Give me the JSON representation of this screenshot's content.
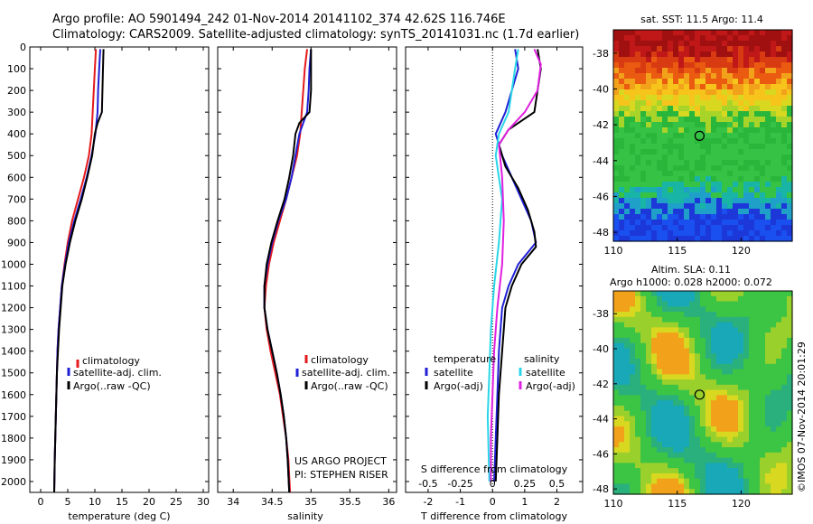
{
  "header": {
    "line1": "Argo profile: AO 5901494_242 01-Nov-2014 20141102_374 42.62S 116.746E",
    "line2": "Climatology: CARS2009. Satellite-adjusted climatology: synTS_20141031.nc (1.7d earlier)"
  },
  "colors": {
    "climatology": "#e41a1c",
    "satellite": "#1f1fd6",
    "argo": "#000000",
    "sal_satellite": "#2ad6e8",
    "sal_argo": "#e021e0"
  },
  "chart_data": [
    {
      "type": "line",
      "name": "temperature-profile",
      "xlabel": "temperature (deg C)",
      "ylabel": "",
      "xlim": [
        -2,
        31
      ],
      "ylim": [
        2050,
        0
      ],
      "xticks": [
        0,
        5,
        10,
        15,
        20,
        25,
        30
      ],
      "yticks": [
        0,
        100,
        200,
        300,
        400,
        500,
        600,
        700,
        800,
        900,
        1000,
        1100,
        1200,
        1300,
        1400,
        1500,
        1600,
        1700,
        1800,
        1900,
        2000
      ],
      "legend": [
        "climatology",
        "satellite-adj. clim.",
        "Argo(..raw -QC)"
      ],
      "series": [
        {
          "name": "climatology",
          "points": [
            [
              10.2,
              10
            ],
            [
              10.0,
              100
            ],
            [
              9.8,
              200
            ],
            [
              9.6,
              300
            ],
            [
              9.4,
              400
            ],
            [
              8.9,
              500
            ],
            [
              8.0,
              600
            ],
            [
              6.9,
              700
            ],
            [
              5.8,
              800
            ],
            [
              5.0,
              900
            ],
            [
              4.4,
              1000
            ],
            [
              3.9,
              1100
            ],
            [
              3.6,
              1200
            ],
            [
              3.3,
              1300
            ],
            [
              3.1,
              1400
            ],
            [
              3.0,
              1500
            ],
            [
              2.9,
              1600
            ],
            [
              2.8,
              1700
            ],
            [
              2.7,
              1800
            ],
            [
              2.6,
              1900
            ],
            [
              2.5,
              2050
            ]
          ]
        },
        {
          "name": "satellite-adj. clim.",
          "points": [
            [
              11.0,
              10
            ],
            [
              10.8,
              100
            ],
            [
              10.6,
              200
            ],
            [
              10.5,
              300
            ],
            [
              10.1,
              400
            ],
            [
              9.4,
              500
            ],
            [
              8.5,
              600
            ],
            [
              7.4,
              700
            ],
            [
              6.2,
              800
            ],
            [
              5.2,
              900
            ],
            [
              4.5,
              1000
            ],
            [
              3.9,
              1100
            ],
            [
              3.6,
              1200
            ],
            [
              3.3,
              1300
            ],
            [
              3.1,
              1400
            ],
            [
              3.0,
              1500
            ],
            [
              2.9,
              1600
            ],
            [
              2.8,
              1700
            ],
            [
              2.7,
              1800
            ],
            [
              2.6,
              1900
            ],
            [
              2.5,
              2050
            ]
          ]
        },
        {
          "name": "Argo(..raw -QC)",
          "points": [
            [
              11.6,
              10
            ],
            [
              11.5,
              100
            ],
            [
              11.4,
              200
            ],
            [
              11.3,
              300
            ],
            [
              10.5,
              350
            ],
            [
              10.0,
              400
            ],
            [
              9.5,
              500
            ],
            [
              8.6,
              600
            ],
            [
              7.6,
              700
            ],
            [
              6.4,
              800
            ],
            [
              5.4,
              900
            ],
            [
              4.6,
              1000
            ],
            [
              4.0,
              1100
            ],
            [
              3.7,
              1200
            ],
            [
              3.4,
              1300
            ],
            [
              3.2,
              1400
            ],
            [
              3.0,
              1500
            ],
            [
              2.9,
              1600
            ],
            [
              2.8,
              1700
            ],
            [
              2.7,
              1800
            ],
            [
              2.6,
              1900
            ],
            [
              2.5,
              2050
            ]
          ]
        }
      ]
    },
    {
      "type": "line",
      "name": "salinity-profile",
      "xlabel": "salinity",
      "xlim": [
        33.8,
        36.1
      ],
      "ylim": [
        2050,
        0
      ],
      "xticks": [
        34,
        34.5,
        35,
        35.5,
        36
      ],
      "xticklabels": [
        "34",
        "34.5",
        "35",
        "35.5",
        "36"
      ],
      "legend": [
        "climatology",
        "satellite-adj. clim.",
        "Argo(..raw -QC)"
      ],
      "notes": [
        "US ARGO PROJECT",
        "PI: STEPHEN RISER"
      ],
      "series": [
        {
          "name": "climatology",
          "points": [
            [
              34.95,
              10
            ],
            [
              34.92,
              100
            ],
            [
              34.9,
              200
            ],
            [
              34.88,
              300
            ],
            [
              34.86,
              400
            ],
            [
              34.82,
              500
            ],
            [
              34.75,
              600
            ],
            [
              34.68,
              700
            ],
            [
              34.6,
              800
            ],
            [
              34.52,
              900
            ],
            [
              34.46,
              1000
            ],
            [
              34.42,
              1100
            ],
            [
              34.4,
              1200
            ],
            [
              34.43,
              1300
            ],
            [
              34.48,
              1400
            ],
            [
              34.54,
              1500
            ],
            [
              34.6,
              1600
            ],
            [
              34.64,
              1700
            ],
            [
              34.68,
              1800
            ],
            [
              34.71,
              1900
            ],
            [
              34.73,
              2050
            ]
          ]
        },
        {
          "name": "satellite-adj. clim.",
          "points": [
            [
              35.0,
              10
            ],
            [
              34.98,
              100
            ],
            [
              34.97,
              200
            ],
            [
              34.95,
              300
            ],
            [
              34.85,
              400
            ],
            [
              34.8,
              500
            ],
            [
              34.75,
              600
            ],
            [
              34.68,
              700
            ],
            [
              34.58,
              800
            ],
            [
              34.5,
              900
            ],
            [
              34.44,
              1000
            ],
            [
              34.4,
              1100
            ],
            [
              34.4,
              1200
            ],
            [
              34.44,
              1300
            ],
            [
              34.5,
              1400
            ],
            [
              34.56,
              1500
            ],
            [
              34.61,
              1600
            ],
            [
              34.65,
              1700
            ],
            [
              34.68,
              1800
            ],
            [
              34.7,
              1900
            ],
            [
              34.72,
              2050
            ]
          ]
        },
        {
          "name": "Argo(..raw -QC)",
          "points": [
            [
              35.0,
              10
            ],
            [
              35.0,
              100
            ],
            [
              35.0,
              200
            ],
            [
              34.98,
              300
            ],
            [
              34.85,
              350
            ],
            [
              34.8,
              400
            ],
            [
              34.77,
              500
            ],
            [
              34.72,
              600
            ],
            [
              34.66,
              700
            ],
            [
              34.57,
              800
            ],
            [
              34.49,
              900
            ],
            [
              34.43,
              1000
            ],
            [
              34.4,
              1100
            ],
            [
              34.4,
              1200
            ],
            [
              34.44,
              1300
            ],
            [
              34.5,
              1400
            ],
            [
              34.56,
              1500
            ],
            [
              34.61,
              1600
            ],
            [
              34.65,
              1700
            ],
            [
              34.68,
              1800
            ],
            [
              34.7,
              1900
            ],
            [
              34.72,
              2050
            ]
          ]
        }
      ]
    },
    {
      "type": "line",
      "name": "difference-profile",
      "xlabel": "T difference from climatology",
      "xlabel2": "S difference from climatology",
      "xlim": [
        -2.7,
        2.8
      ],
      "ylim": [
        2050,
        0
      ],
      "xticks": [
        -2,
        -1,
        0,
        1,
        2
      ],
      "xticks2": [
        "-0.5",
        "-0.25",
        "0",
        "0.25",
        "0.5"
      ],
      "legend_headers": [
        "temperature",
        "salinity"
      ],
      "legend": [
        "satellite",
        "Argo(-adj)",
        "satellite",
        "Argo(-adj)"
      ],
      "series": [
        {
          "name": "temperature satellite",
          "points": [
            [
              0.7,
              10
            ],
            [
              0.8,
              100
            ],
            [
              0.6,
              200
            ],
            [
              0.4,
              300
            ],
            [
              0.1,
              400
            ],
            [
              0.3,
              500
            ],
            [
              0.6,
              600
            ],
            [
              0.9,
              700
            ],
            [
              1.2,
              800
            ],
            [
              1.35,
              900
            ],
            [
              0.8,
              1000
            ],
            [
              0.5,
              1100
            ],
            [
              0.3,
              1200
            ],
            [
              0.2,
              1400
            ],
            [
              0.15,
              1600
            ],
            [
              0.1,
              1800
            ],
            [
              0.05,
              2000
            ]
          ]
        },
        {
          "name": "temperature Argo(-adj)",
          "points": [
            [
              1.4,
              10
            ],
            [
              1.5,
              100
            ],
            [
              1.4,
              200
            ],
            [
              1.3,
              300
            ],
            [
              0.5,
              380
            ],
            [
              0.2,
              450
            ],
            [
              0.4,
              550
            ],
            [
              0.8,
              650
            ],
            [
              1.1,
              750
            ],
            [
              1.3,
              850
            ],
            [
              1.35,
              920
            ],
            [
              0.9,
              1000
            ],
            [
              0.6,
              1100
            ],
            [
              0.4,
              1200
            ],
            [
              0.3,
              1400
            ],
            [
              0.2,
              1600
            ],
            [
              0.15,
              1800
            ],
            [
              0.1,
              2000
            ]
          ]
        },
        {
          "name": "salinity satellite",
          "points": [
            [
              0.8,
              10
            ],
            [
              0.7,
              100
            ],
            [
              0.6,
              200
            ],
            [
              0.5,
              300
            ],
            [
              0.2,
              400
            ],
            [
              0.1,
              500
            ],
            [
              0.2,
              600
            ],
            [
              0.3,
              700
            ],
            [
              0.2,
              900
            ],
            [
              0.05,
              1100
            ],
            [
              -0.05,
              1300
            ],
            [
              -0.1,
              1500
            ],
            [
              -0.15,
              1700
            ],
            [
              -0.1,
              2000
            ]
          ]
        },
        {
          "name": "salinity Argo(-adj)",
          "points": [
            [
              1.3,
              10
            ],
            [
              1.5,
              80
            ],
            [
              1.4,
              200
            ],
            [
              1.0,
              300
            ],
            [
              0.5,
              380
            ],
            [
              0.2,
              450
            ],
            [
              0.3,
              600
            ],
            [
              0.35,
              800
            ],
            [
              0.3,
              1000
            ],
            [
              0.15,
              1200
            ],
            [
              0.05,
              1400
            ],
            [
              0.0,
              1600
            ],
            [
              -0.05,
              1800
            ],
            [
              -0.05,
              2000
            ]
          ]
        }
      ]
    },
    {
      "type": "heatmap",
      "name": "sst-map",
      "title": "sat. SST: 11.5 Argo: 11.4",
      "xlim": [
        110,
        124
      ],
      "ylim": [
        -48.5,
        -36.7
      ],
      "xticks": [
        110,
        115,
        120
      ],
      "yticks": [
        -38,
        -40,
        -42,
        -44,
        -46,
        -48
      ],
      "marker": [
        116.746,
        -42.62
      ]
    },
    {
      "type": "heatmap",
      "name": "sla-map",
      "title": "Altim. SLA: 0.11",
      "subtitle": "Argo h1000: 0.028 h2000: 0.072",
      "xlim": [
        110,
        124
      ],
      "ylim": [
        -48.3,
        -36.7
      ],
      "xticks": [
        110,
        115,
        120
      ],
      "yticks": [
        -38,
        -40,
        -42,
        -44,
        -46,
        -48
      ],
      "marker": [
        116.746,
        -42.62
      ]
    }
  ],
  "sidebar_stamp": "©IMOS 07-Nov-2014 20:01:29"
}
